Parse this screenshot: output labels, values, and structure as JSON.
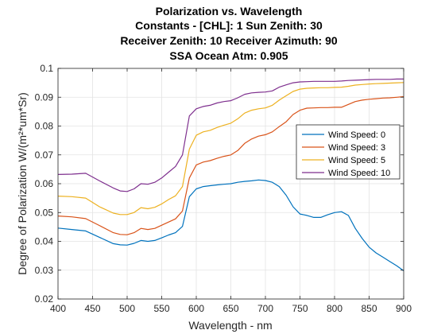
{
  "chart_data": {
    "type": "line",
    "title": [
      "Polarization vs. Wavelength",
      "Constants - [CHL]: 1 Sun Zenith: 30",
      "Receiver Zenith: 10 Receiver Azimuth: 90",
      "SSA Ocean Atm: 0.905"
    ],
    "xlabel": "Wavelength - nm",
    "ylabel": "Degree of Polarization W/(m²*um*Sr)",
    "xlim": [
      400,
      900
    ],
    "ylim": [
      0.02,
      0.1
    ],
    "xticks": [
      "400",
      "450",
      "500",
      "550",
      "600",
      "650",
      "700",
      "750",
      "800",
      "850",
      "900"
    ],
    "yticks": [
      "0.02",
      "0.03",
      "0.04",
      "0.05",
      "0.06",
      "0.07",
      "0.08",
      "0.09",
      "0.1"
    ],
    "grid": true,
    "legend_position": "right",
    "x": [
      400,
      420,
      440,
      460,
      480,
      490,
      500,
      510,
      520,
      530,
      540,
      550,
      560,
      570,
      580,
      590,
      600,
      610,
      620,
      630,
      640,
      650,
      660,
      670,
      680,
      690,
      700,
      710,
      720,
      730,
      740,
      750,
      760,
      770,
      780,
      790,
      800,
      810,
      820,
      830,
      840,
      850,
      860,
      870,
      880,
      890,
      900
    ],
    "series": [
      {
        "name": "Wind Speed: 0",
        "color": "#0072BD",
        "values": [
          0.0446,
          0.0441,
          0.0436,
          0.0414,
          0.0392,
          0.0388,
          0.0387,
          0.0393,
          0.0403,
          0.04,
          0.0403,
          0.0412,
          0.0422,
          0.043,
          0.0452,
          0.0555,
          0.0582,
          0.059,
          0.0593,
          0.0596,
          0.0598,
          0.06,
          0.0605,
          0.0608,
          0.061,
          0.0613,
          0.0611,
          0.0605,
          0.059,
          0.056,
          0.052,
          0.0495,
          0.049,
          0.0483,
          0.0483,
          0.0492,
          0.05,
          0.0503,
          0.049,
          0.0445,
          0.041,
          0.038,
          0.036,
          0.0345,
          0.033,
          0.0315,
          0.0298
        ]
      },
      {
        "name": "Wind Speed: 3",
        "color": "#D95319",
        "values": [
          0.0488,
          0.0485,
          0.0479,
          0.0455,
          0.043,
          0.0424,
          0.0423,
          0.043,
          0.0445,
          0.0441,
          0.0445,
          0.0456,
          0.0467,
          0.0478,
          0.0505,
          0.062,
          0.0665,
          0.0675,
          0.068,
          0.0688,
          0.0695,
          0.07,
          0.0715,
          0.074,
          0.0755,
          0.0765,
          0.077,
          0.078,
          0.0798,
          0.0815,
          0.084,
          0.0855,
          0.0862,
          0.0863,
          0.0864,
          0.0864,
          0.0865,
          0.0865,
          0.0875,
          0.0885,
          0.089,
          0.0893,
          0.0895,
          0.0897,
          0.0898,
          0.09,
          0.0902
        ]
      },
      {
        "name": "Wind Speed: 5",
        "color": "#EDB120",
        "values": [
          0.0557,
          0.0555,
          0.055,
          0.052,
          0.0498,
          0.0493,
          0.0493,
          0.05,
          0.0517,
          0.0513,
          0.0518,
          0.053,
          0.0545,
          0.0558,
          0.059,
          0.072,
          0.0768,
          0.078,
          0.0785,
          0.0795,
          0.0803,
          0.081,
          0.0825,
          0.0845,
          0.0855,
          0.086,
          0.0863,
          0.0872,
          0.089,
          0.0905,
          0.092,
          0.0928,
          0.0931,
          0.0932,
          0.0933,
          0.0933,
          0.0934,
          0.0935,
          0.0938,
          0.0942,
          0.0944,
          0.0946,
          0.0947,
          0.0948,
          0.0949,
          0.095,
          0.0951
        ]
      },
      {
        "name": "Wind Speed: 10",
        "color": "#7E2F8E",
        "values": [
          0.0632,
          0.0633,
          0.0636,
          0.061,
          0.0585,
          0.0575,
          0.0573,
          0.0582,
          0.06,
          0.0598,
          0.0605,
          0.062,
          0.064,
          0.066,
          0.07,
          0.0835,
          0.086,
          0.0868,
          0.0872,
          0.088,
          0.0885,
          0.0888,
          0.0898,
          0.091,
          0.0915,
          0.0917,
          0.0918,
          0.0922,
          0.0935,
          0.0943,
          0.095,
          0.0953,
          0.0954,
          0.0955,
          0.0955,
          0.0955,
          0.0955,
          0.0956,
          0.0958,
          0.0959,
          0.096,
          0.0961,
          0.0962,
          0.0962,
          0.0962,
          0.0963,
          0.0963
        ]
      }
    ]
  }
}
